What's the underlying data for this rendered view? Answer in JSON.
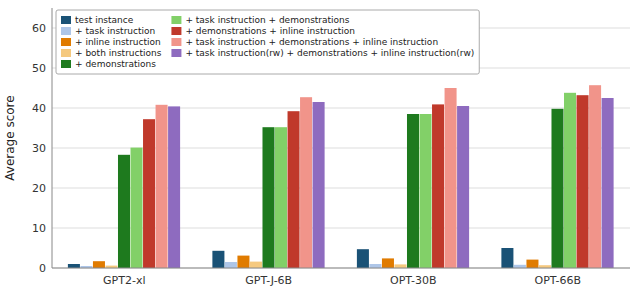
{
  "chart_data": {
    "type": "bar",
    "categories": [
      "GPT2-xl",
      "GPT-J-6B",
      "OPT-30B",
      "OPT-66B"
    ],
    "series": [
      {
        "name": "test instance",
        "color": "#1a5276",
        "values": [
          1.0,
          4.3,
          4.7,
          5.0
        ]
      },
      {
        "name": "+ task instruction",
        "color": "#aec6e8",
        "values": [
          0.5,
          1.5,
          1.0,
          0.8
        ]
      },
      {
        "name": "+ inline instruction",
        "color": "#e07b00",
        "values": [
          1.7,
          3.1,
          2.4,
          2.1
        ]
      },
      {
        "name": "+ both instructions",
        "color": "#f5c97f",
        "values": [
          0.6,
          1.6,
          0.9,
          0.7
        ]
      },
      {
        "name": "+ demonstrations",
        "color": "#1e7a1e",
        "values": [
          28.3,
          35.2,
          38.5,
          39.8
        ]
      },
      {
        "name": "+ task instruction + demonstrations",
        "color": "#82d068",
        "values": [
          30.1,
          35.2,
          38.5,
          43.8
        ]
      },
      {
        "name": "+ demonstrations + inline instruction",
        "color": "#c0392b",
        "values": [
          37.2,
          39.2,
          40.9,
          43.2
        ]
      },
      {
        "name": "+ task instruction + demonstrations + inline instruction",
        "color": "#f1948a",
        "values": [
          40.8,
          42.7,
          45.0,
          45.7
        ]
      },
      {
        "name": "+ task instruction(rw) + demonstrations + inline instruction(rw)",
        "color": "#8e6bbf",
        "values": [
          40.4,
          41.5,
          40.5,
          42.5
        ]
      }
    ],
    "ylabel": "Average score",
    "ylim": [
      0,
      65
    ],
    "yticks": [
      0,
      10,
      20,
      30,
      40,
      50,
      60
    ],
    "grid": true,
    "legend": "upper left"
  }
}
